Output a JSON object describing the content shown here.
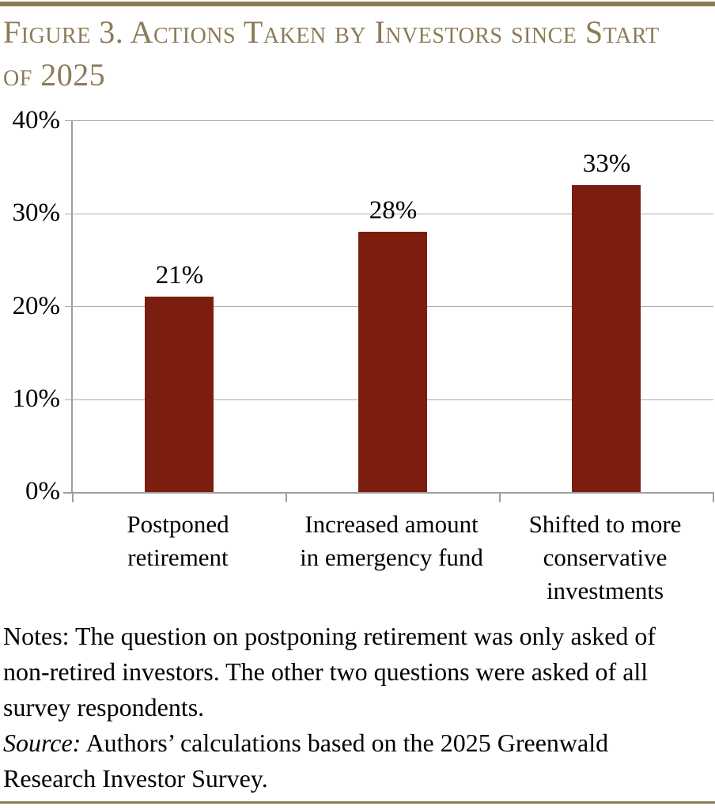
{
  "figure": {
    "title_lines": [
      "Figure 3. Actions Taken by Investors since Start",
      "of 2025"
    ]
  },
  "chart_data": {
    "type": "bar",
    "title": "Figure 3. Actions Taken by Investors since Start of 2025",
    "categories": [
      "Postponed retirement",
      "Increased amount in emergency fund",
      "Shifted to more conservative investments"
    ],
    "category_lines": [
      [
        "Postponed",
        "retirement"
      ],
      [
        "Increased amount",
        "in emergency fund"
      ],
      [
        "Shifted to more",
        "conservative",
        "investments"
      ]
    ],
    "values": [
      21,
      28,
      33
    ],
    "value_labels": [
      "21%",
      "28%",
      "33%"
    ],
    "yticks": [
      40,
      30,
      20,
      10,
      0
    ],
    "ytick_labels": [
      "40%",
      "30%",
      "20%",
      "10%",
      "0%"
    ],
    "ylim": [
      0,
      40
    ],
    "xlabel": "",
    "ylabel": "",
    "grid": true,
    "legend": false,
    "bar_color": "#7B1E10"
  },
  "notes": {
    "notes_label": "Notes:",
    "notes_text": " The question on postponing retirement was only asked of non-retired investors. The other two questions were asked of all survey respondents.",
    "source_label": "Source:",
    "source_text": " Authors’ calculations based on the 2025 Greenwald Research Investor Survey."
  },
  "colors": {
    "accent_tan": "#8C7B58",
    "bar_maroon": "#7B1E10",
    "gridline_gray": "#ADADAD",
    "axis_gray": "#9E9E9E"
  }
}
